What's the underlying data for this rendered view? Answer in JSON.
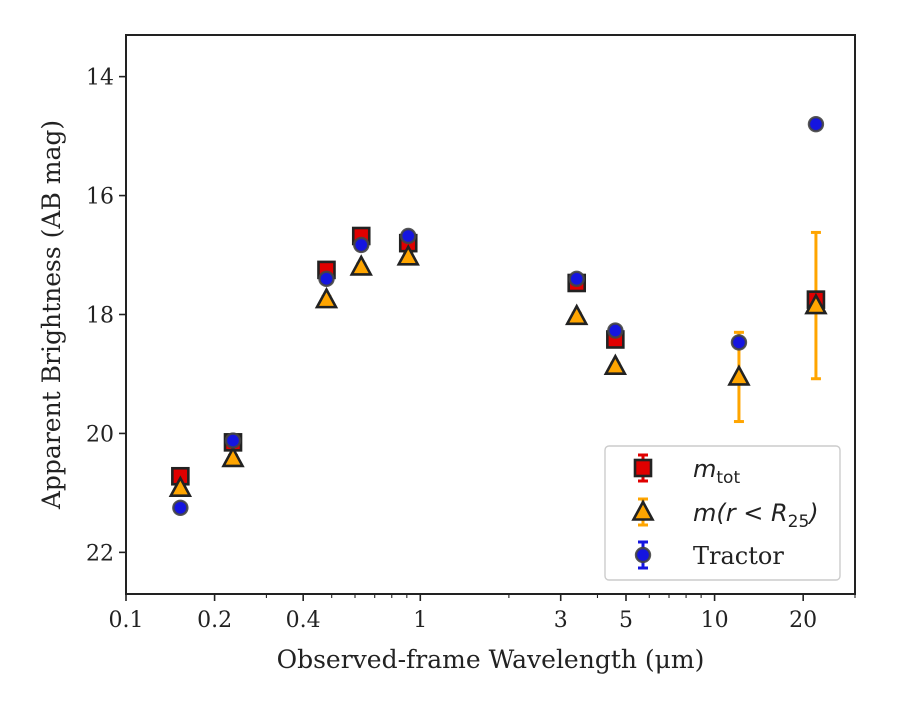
{
  "chart_data": {
    "type": "scatter",
    "xlabel": "Observed-frame Wavelength (μm)",
    "ylabel": "Apparent Brightness (AB mag)",
    "xscale": "log",
    "xlim": [
      0.1,
      30
    ],
    "ylim": [
      22.7,
      13.3
    ],
    "y_inverted": true,
    "grid": false,
    "legend_position": "lower-right",
    "x_ticks": [
      {
        "value": 0.1,
        "label": "0.1"
      },
      {
        "value": 0.2,
        "label": "0.2"
      },
      {
        "value": 0.4,
        "label": "0.4"
      },
      {
        "value": 1,
        "label": "1"
      },
      {
        "value": 3,
        "label": "3"
      },
      {
        "value": 5,
        "label": "5"
      },
      {
        "value": 10,
        "label": "10"
      },
      {
        "value": 20,
        "label": "20"
      }
    ],
    "y_ticks": [
      {
        "value": 14,
        "label": "14"
      },
      {
        "value": 16,
        "label": "16"
      },
      {
        "value": 18,
        "label": "18"
      },
      {
        "value": 20,
        "label": "20"
      },
      {
        "value": 22,
        "label": "22"
      }
    ],
    "series": [
      {
        "name": "m_tot",
        "legend_main": "m",
        "legend_sub": "tot",
        "marker": "square",
        "color": "#e00000",
        "edge_color": "#222222",
        "points": [
          {
            "x": 0.153,
            "y": 20.72,
            "err": 0.08
          },
          {
            "x": 0.231,
            "y": 20.15,
            "err": 0.06
          },
          {
            "x": 0.48,
            "y": 17.25,
            "err": 0.05
          },
          {
            "x": 0.63,
            "y": 16.68,
            "err": 0.1
          },
          {
            "x": 0.91,
            "y": 16.8,
            "err": 0.05
          },
          {
            "x": 3.4,
            "y": 17.47,
            "err": 0.05
          },
          {
            "x": 4.6,
            "y": 18.42,
            "err": 0.08
          },
          {
            "x": 22.1,
            "y": 17.75,
            "err": 0.05
          }
        ]
      },
      {
        "name": "m(r < R_25)",
        "legend_main": "m(r < R",
        "legend_sub": "25",
        "legend_close": ")",
        "marker": "triangle",
        "color": "#ffa500",
        "edge_color": "#222222",
        "points": [
          {
            "x": 0.153,
            "y": 20.92,
            "err": 0.05
          },
          {
            "x": 0.231,
            "y": 20.42,
            "err": 0.05
          },
          {
            "x": 0.48,
            "y": 17.75,
            "err": 0.05
          },
          {
            "x": 0.63,
            "y": 17.2,
            "err": 0.05
          },
          {
            "x": 0.91,
            "y": 17.03,
            "err": 0.05
          },
          {
            "x": 3.4,
            "y": 18.03,
            "err": 0.05
          },
          {
            "x": 4.6,
            "y": 18.87,
            "err": 0.05
          },
          {
            "x": 12.1,
            "y": 19.05,
            "err": 0.75
          },
          {
            "x": 22.1,
            "y": 17.85,
            "err": 1.23
          }
        ]
      },
      {
        "name": "Tractor",
        "legend_main": "Tractor",
        "marker": "circle",
        "color": "#1515e0",
        "edge_color": "#444444",
        "points": [
          {
            "x": 0.153,
            "y": 21.25,
            "err": 0.05
          },
          {
            "x": 0.231,
            "y": 20.12,
            "err": 0.05
          },
          {
            "x": 0.48,
            "y": 17.4,
            "err": 0.05
          },
          {
            "x": 0.63,
            "y": 16.83,
            "err": 0.05
          },
          {
            "x": 0.91,
            "y": 16.68,
            "err": 0.05
          },
          {
            "x": 3.4,
            "y": 17.4,
            "err": 0.05
          },
          {
            "x": 4.6,
            "y": 18.27,
            "err": 0.05
          },
          {
            "x": 12.1,
            "y": 18.47,
            "err": 0.05
          },
          {
            "x": 22.1,
            "y": 14.8,
            "err": 0.05
          }
        ]
      }
    ]
  }
}
